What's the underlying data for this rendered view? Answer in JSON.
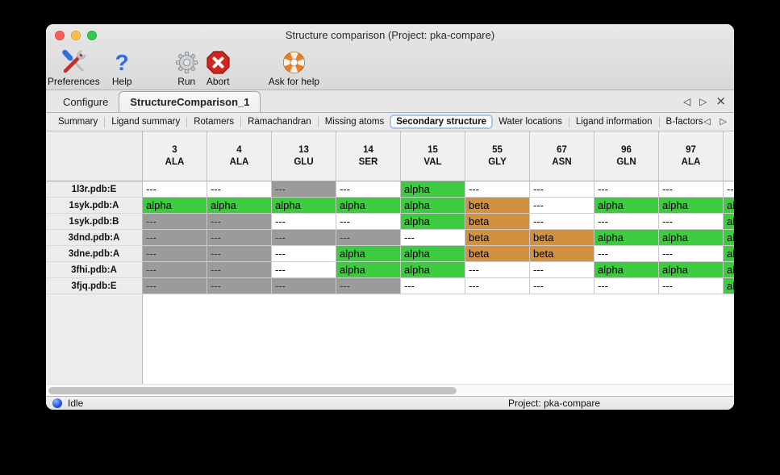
{
  "window": {
    "title": "Structure comparison (Project: pka-compare)"
  },
  "toolbar": {
    "items": [
      {
        "label": "Preferences",
        "icon": "tools-icon"
      },
      {
        "label": "Help",
        "icon": "question-mark-icon"
      },
      {
        "label": "Run",
        "icon": "gear-icon"
      },
      {
        "label": "Abort",
        "icon": "stop-icon"
      },
      {
        "label": "Ask for help",
        "icon": "lifebuoy-icon"
      }
    ]
  },
  "tabs": {
    "items": [
      {
        "label": "Configure",
        "active": false
      },
      {
        "label": "StructureComparison_1",
        "active": true
      }
    ],
    "controls": {
      "left_glyph": "◁",
      "right_glyph": "▷",
      "close_glyph": "×"
    }
  },
  "subtabs": {
    "items": [
      "Summary",
      "Ligand summary",
      "Rotamers",
      "Ramachandran",
      "Missing atoms",
      "Secondary structure",
      "Water locations",
      "Ligand information",
      "B-factors"
    ],
    "selected": "Secondary structure",
    "controls": {
      "left_glyph": "◁",
      "right_glyph": "▷"
    }
  },
  "table": {
    "corner_label": "",
    "columns": [
      {
        "number": "3",
        "residue": "ALA"
      },
      {
        "number": "4",
        "residue": "ALA"
      },
      {
        "number": "13",
        "residue": "GLU"
      },
      {
        "number": "14",
        "residue": "SER"
      },
      {
        "number": "15",
        "residue": "VAL"
      },
      {
        "number": "55",
        "residue": "GLY"
      },
      {
        "number": "67",
        "residue": "ASN"
      },
      {
        "number": "96",
        "residue": "GLN"
      },
      {
        "number": "97",
        "residue": "ALA"
      }
    ],
    "clipped_column": {
      "number": "",
      "residue": ""
    },
    "rows": [
      {
        "label": "1l3r.pdb:E",
        "cells": [
          {
            "value": "---",
            "style": "plain"
          },
          {
            "value": "---",
            "style": "plain"
          },
          {
            "value": "---",
            "style": "gray"
          },
          {
            "value": "---",
            "style": "plain"
          },
          {
            "value": "alpha",
            "style": "alpha"
          },
          {
            "value": "---",
            "style": "plain"
          },
          {
            "value": "---",
            "style": "plain"
          },
          {
            "value": "---",
            "style": "plain"
          },
          {
            "value": "---",
            "style": "plain"
          },
          {
            "value": "---",
            "style": "plain"
          }
        ]
      },
      {
        "label": "1syk.pdb:A",
        "cells": [
          {
            "value": "alpha",
            "style": "alpha"
          },
          {
            "value": "alpha",
            "style": "alpha"
          },
          {
            "value": "alpha",
            "style": "alpha"
          },
          {
            "value": "alpha",
            "style": "alpha"
          },
          {
            "value": "alpha",
            "style": "alpha"
          },
          {
            "value": "beta",
            "style": "beta"
          },
          {
            "value": "---",
            "style": "plain"
          },
          {
            "value": "alpha",
            "style": "alpha"
          },
          {
            "value": "alpha",
            "style": "alpha"
          },
          {
            "value": "alpha",
            "style": "alpha"
          }
        ]
      },
      {
        "label": "1syk.pdb:B",
        "cells": [
          {
            "value": "---",
            "style": "gray"
          },
          {
            "value": "---",
            "style": "gray"
          },
          {
            "value": "---",
            "style": "plain"
          },
          {
            "value": "---",
            "style": "plain"
          },
          {
            "value": "alpha",
            "style": "alpha"
          },
          {
            "value": "beta",
            "style": "beta"
          },
          {
            "value": "---",
            "style": "plain"
          },
          {
            "value": "---",
            "style": "plain"
          },
          {
            "value": "---",
            "style": "plain"
          },
          {
            "value": "alpha",
            "style": "alpha"
          }
        ]
      },
      {
        "label": "3dnd.pdb:A",
        "cells": [
          {
            "value": "---",
            "style": "gray"
          },
          {
            "value": "---",
            "style": "gray"
          },
          {
            "value": "---",
            "style": "gray"
          },
          {
            "value": "---",
            "style": "gray"
          },
          {
            "value": "---",
            "style": "plain"
          },
          {
            "value": "beta",
            "style": "beta"
          },
          {
            "value": "beta",
            "style": "beta"
          },
          {
            "value": "alpha",
            "style": "alpha"
          },
          {
            "value": "alpha",
            "style": "alpha"
          },
          {
            "value": "alpha",
            "style": "alpha"
          }
        ]
      },
      {
        "label": "3dne.pdb:A",
        "cells": [
          {
            "value": "---",
            "style": "gray"
          },
          {
            "value": "---",
            "style": "gray"
          },
          {
            "value": "---",
            "style": "plain"
          },
          {
            "value": "alpha",
            "style": "alpha"
          },
          {
            "value": "alpha",
            "style": "alpha"
          },
          {
            "value": "beta",
            "style": "beta"
          },
          {
            "value": "beta",
            "style": "beta"
          },
          {
            "value": "---",
            "style": "plain"
          },
          {
            "value": "---",
            "style": "plain"
          },
          {
            "value": "alpha",
            "style": "alpha"
          }
        ]
      },
      {
        "label": "3fhi.pdb:A",
        "cells": [
          {
            "value": "---",
            "style": "gray"
          },
          {
            "value": "---",
            "style": "gray"
          },
          {
            "value": "---",
            "style": "plain"
          },
          {
            "value": "alpha",
            "style": "alpha"
          },
          {
            "value": "alpha",
            "style": "alpha"
          },
          {
            "value": "---",
            "style": "plain"
          },
          {
            "value": "---",
            "style": "plain"
          },
          {
            "value": "alpha",
            "style": "alpha"
          },
          {
            "value": "alpha",
            "style": "alpha"
          },
          {
            "value": "alpha",
            "style": "alpha"
          }
        ]
      },
      {
        "label": "3fjq.pdb:E",
        "cells": [
          {
            "value": "---",
            "style": "gray"
          },
          {
            "value": "---",
            "style": "gray"
          },
          {
            "value": "---",
            "style": "gray"
          },
          {
            "value": "---",
            "style": "gray"
          },
          {
            "value": "---",
            "style": "plain"
          },
          {
            "value": "---",
            "style": "plain"
          },
          {
            "value": "---",
            "style": "plain"
          },
          {
            "value": "---",
            "style": "plain"
          },
          {
            "value": "---",
            "style": "plain"
          },
          {
            "value": "alpha",
            "style": "alpha"
          }
        ]
      }
    ]
  },
  "statusbar": {
    "status": "Idle",
    "project": "Project: pka-compare"
  },
  "colors": {
    "alpha_green": "#3dcb3f",
    "beta_orange": "#d2913e",
    "missing_gray": "#9a9b9a",
    "selected_tab_border": "#a6c6ef",
    "accent_blue": "#1c55e0"
  }
}
